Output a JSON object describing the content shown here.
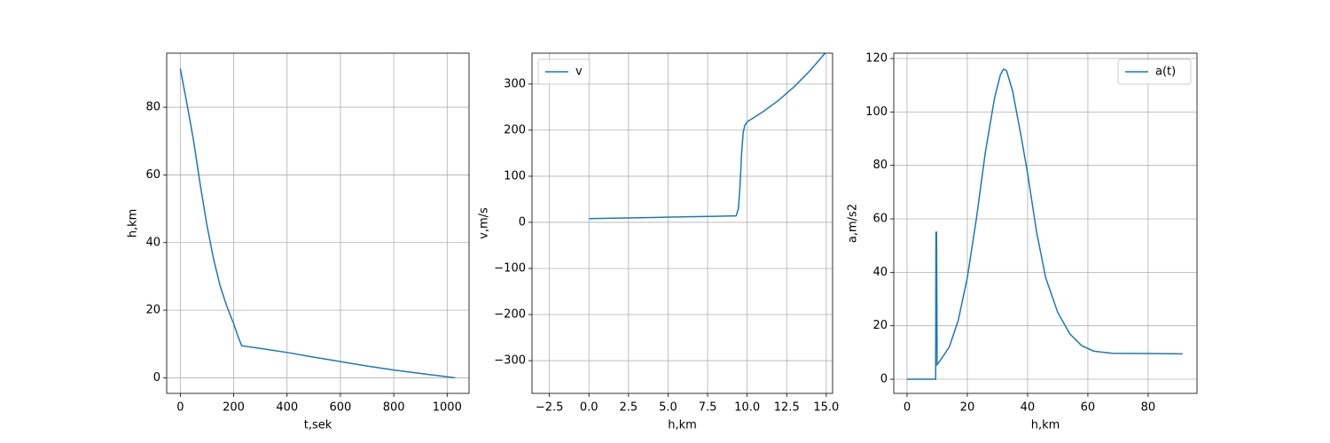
{
  "chart_data": [
    {
      "type": "line",
      "xlabel": "t,sek",
      "ylabel": "h,km",
      "color": "#1f77b4",
      "grid": true,
      "x": [
        0,
        25,
        50,
        75,
        100,
        125,
        150,
        175,
        200,
        215,
        230,
        300,
        400,
        500,
        600,
        700,
        800,
        900,
        1030
      ],
      "values": [
        91.4,
        81,
        70,
        57,
        45,
        35,
        27,
        21,
        16,
        12.5,
        9.5,
        8.7,
        7.5,
        6.1,
        4.8,
        3.5,
        2.3,
        1.3,
        0
      ],
      "xlim": [
        -51,
        1082
      ],
      "ylim": [
        -4.6,
        96
      ],
      "xticks": [
        0,
        200,
        400,
        600,
        800,
        1000
      ],
      "yticks": [
        0,
        20,
        40,
        60,
        80
      ]
    },
    {
      "type": "line",
      "xlabel": "h,km",
      "ylabel": "v,m/s",
      "grid": true,
      "legend": "upper left",
      "x": [
        0,
        2,
        4,
        6,
        8,
        9.3,
        9.45,
        9.55,
        9.65,
        9.75,
        9.85,
        10,
        11,
        12,
        13,
        14,
        15
      ],
      "series": [
        {
          "name": "v",
          "color": "#1f77b4",
          "values": [
            8,
            9.3,
            10.6,
            11.9,
            13.2,
            14,
            30,
            80,
            150,
            195,
            210,
            218,
            240,
            265,
            295,
            330,
            370
          ]
        }
      ],
      "xlim": [
        -3.6,
        15.4
      ],
      "ylim": [
        -371,
        367
      ],
      "xticks": [
        {
          "value": -2.5,
          "label": "−2.5"
        },
        {
          "value": 0,
          "label": "0.0"
        },
        2.5,
        {
          "value": 5,
          "label": "5.0"
        },
        7.5,
        {
          "value": 10,
          "label": "10.0"
        },
        12.5,
        {
          "value": 15,
          "label": "15.0"
        }
      ],
      "yticks": [
        {
          "value": -300,
          "label": "−300"
        },
        {
          "value": -200,
          "label": "−200"
        },
        {
          "value": -100,
          "label": "−100"
        },
        0,
        100,
        200,
        300
      ]
    },
    {
      "type": "line",
      "xlabel": "h,km",
      "ylabel": "a,m/s2",
      "grid": true,
      "legend": "upper right",
      "x": [
        0,
        9.5,
        9.6,
        9.8,
        10,
        11,
        14,
        17,
        20,
        23,
        26,
        29,
        31,
        32,
        33,
        35,
        38,
        40,
        43,
        46,
        50,
        54,
        58,
        62,
        68,
        80,
        91.4
      ],
      "series": [
        {
          "name": "a(t)",
          "color": "#1f77b4",
          "values": [
            0,
            0,
            55,
            55,
            5.5,
            7,
            12,
            22,
            38,
            60,
            85,
            105,
            114,
            116,
            115.5,
            108,
            90,
            77,
            55,
            38,
            25,
            17,
            12.5,
            10.5,
            9.7,
            9.6,
            9.5
          ]
        }
      ],
      "xlim": [
        -4.4,
        96.2
      ],
      "ylim": [
        -5.3,
        122
      ],
      "xticks": [
        0,
        20,
        40,
        60,
        80
      ],
      "yticks": [
        0,
        20,
        40,
        60,
        80,
        100,
        120
      ]
    }
  ]
}
